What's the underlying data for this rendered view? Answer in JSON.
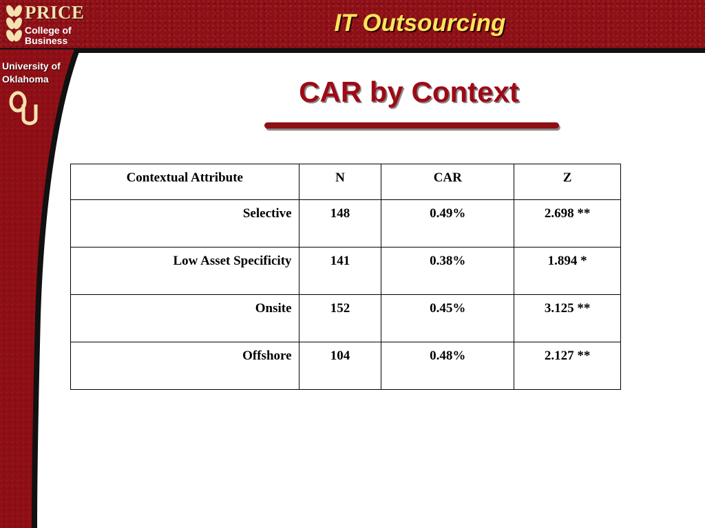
{
  "logo": {
    "price": "PRICE",
    "college_line1": "College of",
    "college_line2": "Business"
  },
  "university": {
    "line1": "University of",
    "line2": "Oklahoma",
    "mark": "OU"
  },
  "slide_title": "IT Outsourcing",
  "heading": "CAR by Context",
  "colors": {
    "crimson": "#8e0f16",
    "title_yellow": "#ffe45c",
    "heading_red": "#9d0a16",
    "cream": "#f4e3b0"
  },
  "table": {
    "headers": [
      "Contextual Attribute",
      "N",
      "CAR",
      "Z"
    ],
    "rows": [
      {
        "attribute": "Selective",
        "n": "148",
        "car": "0.49%",
        "z": "2.698 **"
      },
      {
        "attribute": "Low Asset Specificity",
        "n": "141",
        "car": "0.38%",
        "z": "1.894 *"
      },
      {
        "attribute": "Onsite",
        "n": "152",
        "car": "0.45%",
        "z": "3.125 **"
      },
      {
        "attribute": "Offshore",
        "n": "104",
        "car": "0.48%",
        "z": "2.127 **"
      }
    ]
  }
}
